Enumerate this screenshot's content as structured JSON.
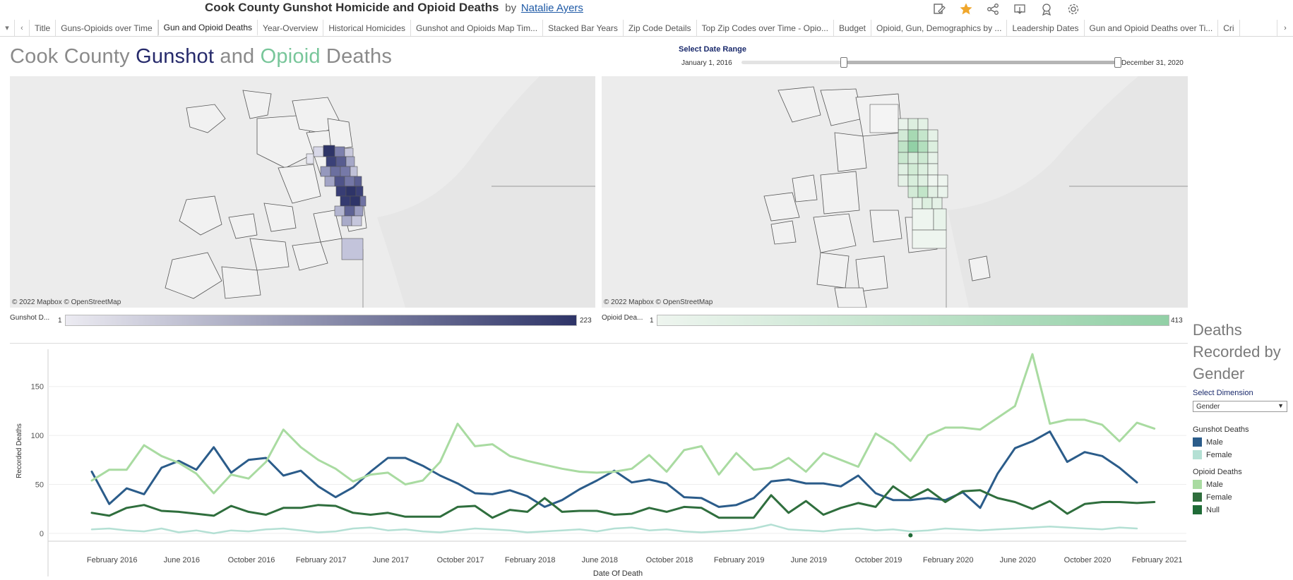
{
  "header": {
    "title": "Cook County Gunshot Homicide and Opioid Deaths",
    "by": "by",
    "author": "Natalie Ayers",
    "icons": [
      "edit-icon",
      "favorite-star-icon",
      "share-icon",
      "download-icon",
      "metrics-icon",
      "settings-icon"
    ]
  },
  "tabs": [
    "Title",
    "Guns-Opioids over Time",
    "Gun and Opioid Deaths",
    "Year-Overview",
    "Historical Homicides",
    "Gunshot and Opioids Map Tim...",
    "Stacked Bar Years",
    "Zip Code Details",
    "Top Zip Codes over Time - Opio...",
    "Budget",
    "Opioid, Gun, Demographics by ...",
    "Leadership Dates",
    "Gun and Opioid Deaths over Ti...",
    "Cri"
  ],
  "active_tab": "Gun and Opioid Deaths",
  "dashboard": {
    "title_part1": "Cook County ",
    "title_gun": "Gunshot",
    "title_and": " and ",
    "title_opioid": "Opioid",
    "title_end": " Deaths"
  },
  "date_range": {
    "label": "Select Date Range",
    "start": "January 1, 2016",
    "end": "December 31, 2020",
    "selected_start_fraction": 0.27,
    "selected_end_fraction": 1.0
  },
  "maps": {
    "credit": "© 2022 Mapbox  © OpenStreetMap",
    "gunshot_legend": {
      "label": "Gunshot D...",
      "min": "1",
      "max": "223",
      "color_low": "#ecebf2",
      "color_high": "#2e3468"
    },
    "opioid_legend": {
      "label": "Opioid Dea...",
      "min": "1",
      "max": "413",
      "color_low": "#eef5ef",
      "color_high": "#92d0a6"
    }
  },
  "side": {
    "title": "Deaths Recorded by Gender",
    "select_label": "Select Dimension",
    "select_value": "Gender",
    "gunshot_heading": "Gunshot Deaths",
    "opioid_heading": "Opioid Deaths",
    "gunshot_items": [
      {
        "label": "Male",
        "color": "#2b5c8a"
      },
      {
        "label": "Female",
        "color": "#b4e0d4"
      }
    ],
    "opioid_items": [
      {
        "label": "Male",
        "color": "#a9dba1"
      },
      {
        "label": "Female",
        "color": "#2f6e3d"
      },
      {
        "label": "Null",
        "color": "#1f6b37"
      }
    ]
  },
  "chart_data": {
    "type": "line",
    "xlabel": "Date Of Death",
    "ylabel": "Recorded Deaths",
    "ylim": [
      -8,
      188
    ],
    "yticks": [
      0,
      50,
      100,
      150
    ],
    "x_tick_labels": [
      "February 2016",
      "June 2016",
      "October 2016",
      "February 2017",
      "June 2017",
      "October 2017",
      "February 2018",
      "June 2018",
      "October 2018",
      "February 2019",
      "June 2019",
      "October 2019",
      "February 2020",
      "June 2020",
      "October 2020",
      "February 2021"
    ],
    "x_start": "January 2016",
    "x_end": "December 2020",
    "series": [
      {
        "name": "Gunshot Deaths Male",
        "color": "#2b5c8a",
        "values": [
          63,
          30,
          46,
          40,
          67,
          74,
          65,
          88,
          62,
          75,
          77,
          59,
          64,
          48,
          37,
          47,
          63,
          77,
          77,
          69,
          59,
          51,
          41,
          40,
          44,
          38,
          27,
          34,
          45,
          54,
          64,
          52,
          55,
          51,
          37,
          36,
          27,
          29,
          36,
          53,
          55,
          51,
          51,
          48,
          59,
          41,
          34,
          34,
          36,
          34,
          42,
          26,
          61,
          87,
          94,
          104,
          73,
          83,
          79,
          67,
          52
        ],
        "series_name": "Male"
      },
      {
        "name": "Gunshot Deaths Female",
        "color": "#b4e0d4",
        "values": [
          4,
          5,
          3,
          2,
          5,
          1,
          3,
          0,
          3,
          2,
          4,
          5,
          3,
          1,
          2,
          5,
          6,
          3,
          4,
          2,
          1,
          3,
          5,
          4,
          3,
          1,
          2,
          3,
          4,
          2,
          5,
          6,
          3,
          4,
          2,
          1,
          2,
          3,
          5,
          9,
          4,
          3,
          2,
          4,
          5,
          3,
          4,
          2,
          3,
          5,
          4,
          3,
          4,
          5,
          6,
          7,
          6,
          5,
          4,
          6,
          5
        ]
      },
      {
        "name": "Opioid Deaths Male",
        "color": "#a9dba1",
        "values": [
          54,
          65,
          65,
          90,
          79,
          72,
          61,
          41,
          60,
          56,
          73,
          106,
          88,
          75,
          66,
          53,
          60,
          62,
          50,
          54,
          73,
          112,
          89,
          91,
          79,
          74,
          70,
          66,
          63,
          62,
          63,
          66,
          80,
          63,
          85,
          89,
          60,
          82,
          65,
          67,
          77,
          63,
          82,
          75,
          68,
          102,
          91,
          74,
          100,
          108,
          108,
          106,
          118,
          130,
          183,
          112,
          116,
          116,
          111,
          94,
          113,
          107
        ]
      },
      {
        "name": "Opioid Deaths Female",
        "color": "#2f6e3d",
        "values": [
          21,
          18,
          26,
          29,
          23,
          22,
          20,
          18,
          28,
          22,
          19,
          26,
          26,
          29,
          28,
          21,
          19,
          21,
          17,
          17,
          17,
          27,
          28,
          16,
          24,
          22,
          36,
          22,
          23,
          23,
          19,
          20,
          26,
          22,
          27,
          26,
          16,
          16,
          16,
          39,
          21,
          33,
          19,
          26,
          31,
          27,
          48,
          36,
          45,
          32,
          43,
          44,
          36,
          32,
          25,
          33,
          20,
          30,
          32,
          32,
          31,
          32
        ]
      },
      {
        "name": "Opioid Deaths Null",
        "color": "#1f6b37",
        "values": [
          0
        ]
      }
    ]
  }
}
